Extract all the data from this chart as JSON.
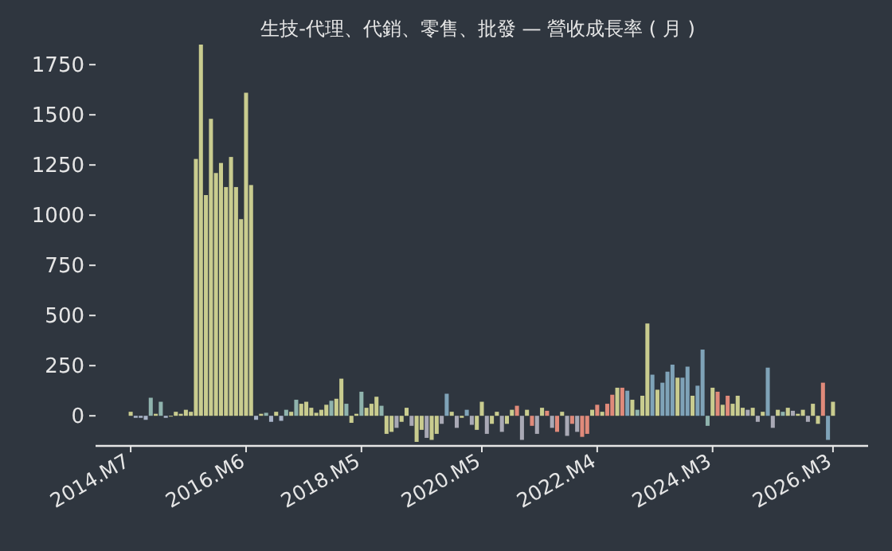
{
  "chart_data": {
    "type": "bar",
    "title": "生技-代理、代銷、零售、批發 — 營收成長率 ( 月 )",
    "categories": [
      "2014.M7",
      null,
      null,
      null,
      null,
      null,
      null,
      null,
      null,
      null,
      null,
      null,
      null,
      null,
      null,
      null,
      null,
      null,
      null,
      null,
      null,
      null,
      null,
      "2016.M6",
      null,
      null,
      null,
      null,
      null,
      null,
      null,
      null,
      null,
      null,
      null,
      null,
      null,
      null,
      null,
      null,
      null,
      null,
      null,
      null,
      null,
      null,
      "2018.M5",
      null,
      null,
      null,
      null,
      null,
      null,
      null,
      null,
      null,
      null,
      null,
      null,
      null,
      null,
      null,
      null,
      null,
      null,
      null,
      null,
      null,
      null,
      null,
      "2020.M5",
      null,
      null,
      null,
      null,
      null,
      null,
      null,
      null,
      null,
      null,
      null,
      null,
      null,
      null,
      null,
      null,
      null,
      null,
      null,
      null,
      null,
      null,
      "2022.M4",
      null,
      null,
      null,
      null,
      null,
      null,
      null,
      null,
      null,
      null,
      null,
      null,
      null,
      null,
      null,
      null,
      null,
      null,
      null,
      null,
      null,
      null,
      "2024.M3",
      null,
      null,
      null,
      null,
      null,
      null,
      null,
      null,
      null,
      null,
      null,
      null,
      null,
      null,
      null,
      null,
      null,
      null,
      null,
      null,
      null,
      null,
      null,
      "2026.M3"
    ],
    "values": [
      20,
      -10,
      -10,
      -20,
      90,
      10,
      70,
      -10,
      0,
      20,
      10,
      30,
      20,
      1280,
      1850,
      1100,
      1480,
      1210,
      1260,
      1140,
      1290,
      1140,
      980,
      1610,
      1150,
      -20,
      10,
      15,
      -30,
      20,
      -25,
      30,
      20,
      80,
      60,
      70,
      40,
      15,
      30,
      55,
      75,
      85,
      185,
      60,
      -35,
      10,
      120,
      40,
      60,
      95,
      50,
      -90,
      -80,
      -60,
      -30,
      40,
      -50,
      -130,
      -70,
      -110,
      -120,
      -90,
      -40,
      110,
      20,
      -60,
      -10,
      30,
      -45,
      -70,
      70,
      -90,
      -40,
      20,
      -80,
      -40,
      30,
      50,
      -120,
      30,
      -50,
      -90,
      40,
      25,
      -60,
      -80,
      20,
      -100,
      -40,
      -80,
      -105,
      -90,
      30,
      55,
      20,
      60,
      105,
      140,
      140,
      125,
      80,
      30,
      100,
      460,
      205,
      130,
      165,
      220,
      255,
      190,
      190,
      245,
      100,
      150,
      330,
      -50,
      140,
      120,
      55,
      100,
      60,
      100,
      40,
      30,
      40,
      -30,
      20,
      240,
      -60,
      30,
      20,
      40,
      25,
      10,
      30,
      -30,
      60,
      -40,
      165,
      -120,
      70
    ],
    "colors": [
      "#c9cc8f",
      "#a9b4c8",
      "#a9b4c8",
      "#a9b4c8",
      "#8fb3ad",
      "#c9cc8f",
      "#8fb3ad",
      "#a9b4c8",
      "#c9cc8f",
      "#c9cc8f",
      "#c9cc8f",
      "#c9cc8f",
      "#c9cc8f",
      "#c9cc8f",
      "#c9cc8f",
      "#c9cc8f",
      "#c9cc8f",
      "#c9cc8f",
      "#c9cc8f",
      "#c9cc8f",
      "#c9cc8f",
      "#c9cc8f",
      "#c9cc8f",
      "#c9cc8f",
      "#c9cc8f",
      "#a9b4c8",
      "#c9cc8f",
      "#8fb3ad",
      "#a9b4c8",
      "#c9cc8f",
      "#a9b4c8",
      "#8fb3ad",
      "#c9cc8f",
      "#8fb3ad",
      "#c9cc8f",
      "#c9cc8f",
      "#c9cc8f",
      "#c9cc8f",
      "#c9cc8f",
      "#c9cc8f",
      "#8fb3ad",
      "#c9cc8f",
      "#c9cc8f",
      "#8fb3ad",
      "#c9cc8f",
      "#c9cc8f",
      "#8fb3ad",
      "#c9cc8f",
      "#c9cc8f",
      "#c9cc8f",
      "#8fb3ad",
      "#c9cc8f",
      "#c9cc8f",
      "#a9a9b5",
      "#c9cc8f",
      "#c9cc8f",
      "#a9a9b5",
      "#c9cc8f",
      "#c9cc8f",
      "#a9a9b5",
      "#c9cc8f",
      "#c9cc8f",
      "#a9a9b5",
      "#7fa3b8",
      "#c9cc8f",
      "#a9a9b5",
      "#c9cc8f",
      "#7fa3b8",
      "#a9a9b5",
      "#c9cc8f",
      "#c9cc8f",
      "#a9a9b5",
      "#c9cc8f",
      "#c9cc8f",
      "#a9a9b5",
      "#c9cc8f",
      "#c9cc8f",
      "#e08a7a",
      "#a9a9b5",
      "#c9cc8f",
      "#e08a7a",
      "#a9a9b5",
      "#c9cc8f",
      "#e08a7a",
      "#a9a9b5",
      "#e08a7a",
      "#c9cc8f",
      "#a9a9b5",
      "#e08a7a",
      "#a9a9b5",
      "#e08a7a",
      "#e08a7a",
      "#c9cc8f",
      "#e08a7a",
      "#c9cc8f",
      "#e08a7a",
      "#e08a7a",
      "#c9cc8f",
      "#e08a7a",
      "#7fa3b8",
      "#c9cc8f",
      "#8fb3ad",
      "#c9cc8f",
      "#c9cc8f",
      "#7fa3b8",
      "#c9cc8f",
      "#7fa3b8",
      "#7fa3b8",
      "#7fa3b8",
      "#c9cc8f",
      "#7fa3b8",
      "#7fa3b8",
      "#c9cc8f",
      "#7fa3b8",
      "#7fa3b8",
      "#8fb3ad",
      "#c9cc8f",
      "#e08a7a",
      "#c9cc8f",
      "#e08a7a",
      "#c9cc8f",
      "#c9cc8f",
      "#c9cc8f",
      "#a9a9b5",
      "#c9cc8f",
      "#a9a9b5",
      "#c9cc8f",
      "#7fa3b8",
      "#a9a9b5",
      "#c9cc8f",
      "#8fb3ad",
      "#c9cc8f",
      "#a9a9b5",
      "#c9cc8f",
      "#c9cc8f",
      "#a9a9b5",
      "#c9cc8f",
      "#c9cc8f",
      "#e08a7a",
      "#7fa3b8",
      "#c9cc8f"
    ],
    "ylim": [
      -150,
      1850
    ],
    "yticks": [
      0,
      250,
      500,
      750,
      1000,
      1250,
      1500,
      1750
    ],
    "grid": false
  }
}
